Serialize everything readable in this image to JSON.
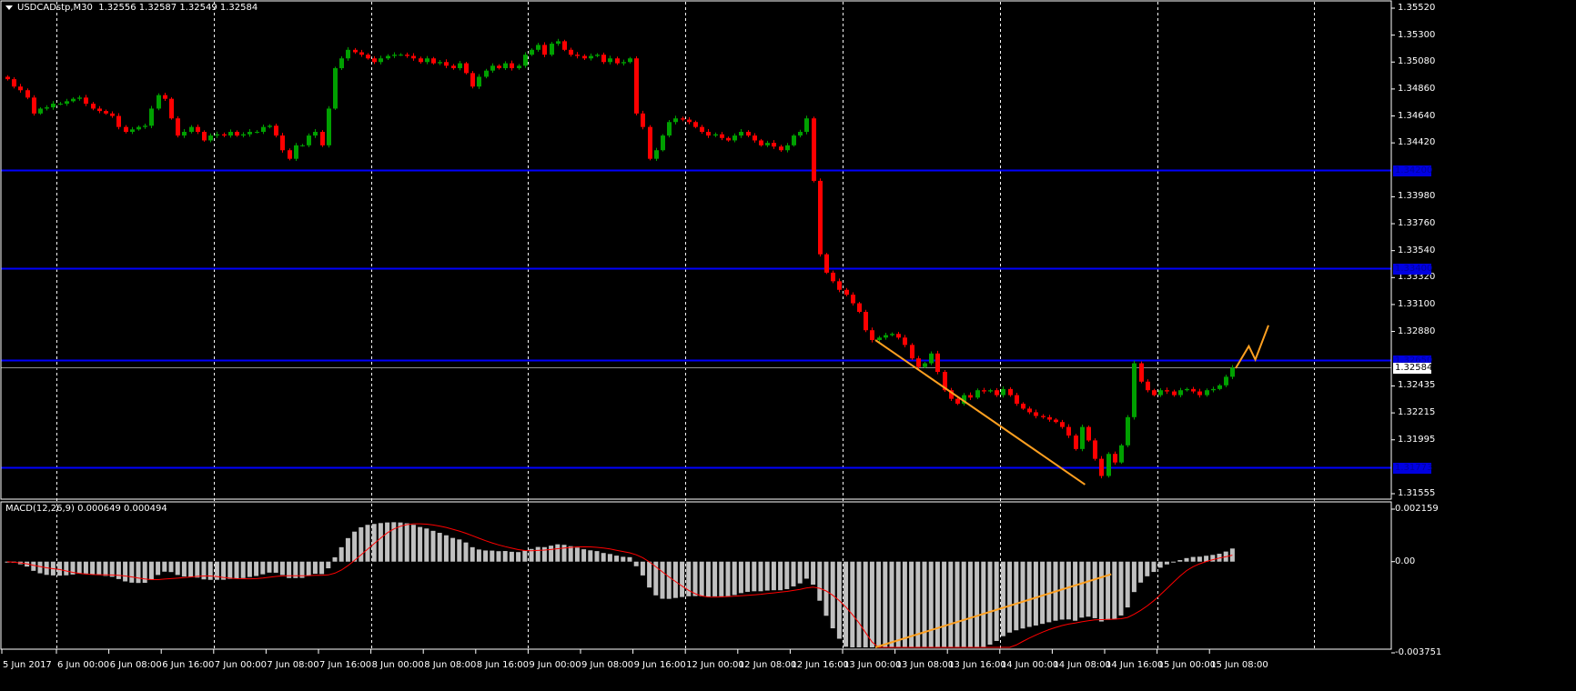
{
  "header": {
    "symbol": "USDCADstp,M30",
    "ohlc": "1.32556 1.32587 1.32549 1.32584"
  },
  "macd_header": {
    "label": "MACD(12,26,9) 0.000649 0.000494"
  },
  "colors": {
    "background": "#000000",
    "bull": "#00a000",
    "bear": "#ff0000",
    "grid": "#ffffff",
    "hline": "#0000ff",
    "trendline": "#ffa020",
    "macd_hist": "#c0c0c0",
    "macd_signal": "#ff0000"
  },
  "chart_data": [
    {
      "type": "candlestick",
      "timeframe": "M30",
      "symbol": "USDCADstp",
      "ylim": [
        1.31555,
        1.3552
      ],
      "grid": true,
      "price_ticks": [
        "1.35520",
        "1.35300",
        "1.35080",
        "1.34860",
        "1.34640",
        "1.34420",
        "1.33980",
        "1.33760",
        "1.33540",
        "1.33320",
        "1.33100",
        "1.32880",
        "1.32435",
        "1.32215",
        "1.31995",
        "1.31555"
      ],
      "time_ticks": [
        {
          "label": "5 Jun 2017",
          "t": "5 Jun 16:00"
        },
        {
          "label": "6 Jun 00:00",
          "t": "6 Jun 00:00"
        },
        {
          "label": "6 Jun 08:00",
          "t": "6 Jun 08:00"
        },
        {
          "label": "6 Jun 16:00",
          "t": "6 Jun 16:00"
        },
        {
          "label": "7 Jun 00:00",
          "t": "7 Jun 00:00"
        },
        {
          "label": "7 Jun 08:00",
          "t": "7 Jun 08:00"
        },
        {
          "label": "7 Jun 16:00",
          "t": "7 Jun 16:00"
        },
        {
          "label": "8 Jun 00:00",
          "t": "8 Jun 00:00"
        },
        {
          "label": "8 Jun 08:00",
          "t": "8 Jun 08:00"
        },
        {
          "label": "8 Jun 16:00",
          "t": "8 Jun 16:00"
        },
        {
          "label": "9 Jun 00:00",
          "t": "9 Jun 00:00"
        },
        {
          "label": "9 Jun 08:00",
          "t": "9 Jun 08:00"
        },
        {
          "label": "9 Jun 16:00",
          "t": "9 Jun 16:00"
        },
        {
          "label": "12 Jun 00:00",
          "t": "12 Jun 00:00"
        },
        {
          "label": "12 Jun 08:00",
          "t": "12 Jun 08:00"
        },
        {
          "label": "12 Jun 16:00",
          "t": "12 Jun 16:00"
        },
        {
          "label": "13 Jun 00:00",
          "t": "13 Jun 00:00"
        },
        {
          "label": "13 Jun 08:00",
          "t": "13 Jun 08:00"
        },
        {
          "label": "13 Jun 16:00",
          "t": "13 Jun 16:00"
        },
        {
          "label": "14 Jun 00:00",
          "t": "14 Jun 00:00"
        },
        {
          "label": "14 Jun 08:00",
          "t": "14 Jun 08:00"
        },
        {
          "label": "14 Jun 16:00",
          "t": "14 Jun 16:00"
        },
        {
          "label": "15 Jun 00:00",
          "t": "15 Jun 00:00"
        },
        {
          "label": "15 Jun 08:00",
          "t": "15 Jun 08:00"
        }
      ],
      "day_separators": [
        "6 Jun 00:00",
        "7 Jun 00:00",
        "8 Jun 00:00",
        "9 Jun 00:00",
        "12 Jun 00:00",
        "13 Jun 00:00",
        "14 Jun 00:00",
        "15 Jun 00:00",
        "16 Jun 00:00"
      ],
      "start": "5 Jun 16:00",
      "sample_step": "1 hour",
      "closes": [
        1.3494,
        1.3488,
        1.3485,
        1.3479,
        1.3466,
        1.347,
        1.3471,
        1.3474,
        1.3474,
        1.3476,
        1.3478,
        1.3479,
        1.3474,
        1.347,
        1.3468,
        1.3466,
        1.3464,
        1.3455,
        1.3451,
        1.3453,
        1.3455,
        1.3456,
        1.347,
        1.3481,
        1.3478,
        1.3462,
        1.3448,
        1.3451,
        1.3455,
        1.3451,
        1.3444,
        1.3448,
        1.3449,
        1.3448,
        1.3451,
        1.3448,
        1.3449,
        1.3451,
        1.3451,
        1.3455,
        1.3456,
        1.3448,
        1.3436,
        1.3429,
        1.344,
        1.344,
        1.3448,
        1.3451,
        1.344,
        1.347,
        1.3503,
        1.3511,
        1.3518,
        1.3516,
        1.3514,
        1.3511,
        1.3508,
        1.3511,
        1.3513,
        1.3514,
        1.3514,
        1.3513,
        1.3511,
        1.3508,
        1.3511,
        1.3507,
        1.3508,
        1.3505,
        1.3503,
        1.3507,
        1.3499,
        1.3488,
        1.3496,
        1.3501,
        1.3505,
        1.3503,
        1.3507,
        1.3503,
        1.3505,
        1.3514,
        1.3518,
        1.3522,
        1.3514,
        1.3523,
        1.3525,
        1.3518,
        1.3514,
        1.3513,
        1.3511,
        1.3513,
        1.3514,
        1.3508,
        1.3511,
        1.3507,
        1.3508,
        1.3511,
        1.3466,
        1.3455,
        1.3429,
        1.3436,
        1.3448,
        1.3459,
        1.3462,
        1.3461,
        1.3459,
        1.3455,
        1.3451,
        1.3448,
        1.3449,
        1.3446,
        1.3444,
        1.3448,
        1.3451,
        1.3448,
        1.3444,
        1.344,
        1.3442,
        1.3439,
        1.3436,
        1.344,
        1.3448,
        1.3451,
        1.3462,
        1.3411,
        1.3351,
        1.3336,
        1.3329,
        1.3322,
        1.3318,
        1.3311,
        1.3304,
        1.3289,
        1.3281,
        1.3283,
        1.3285,
        1.3286,
        1.3283,
        1.3277,
        1.3266,
        1.3259,
        1.3262,
        1.327,
        1.3255,
        1.324,
        1.3233,
        1.3229,
        1.3236,
        1.3234,
        1.324,
        1.3239,
        1.324,
        1.3236,
        1.3241,
        1.3236,
        1.3229,
        1.3225,
        1.3222,
        1.3219,
        1.3218,
        1.3216,
        1.3214,
        1.321,
        1.3203,
        1.3192,
        1.321,
        1.3199,
        1.3184,
        1.317,
        1.3188,
        1.3181,
        1.3195,
        1.3218,
        1.3262,
        1.3247,
        1.324,
        1.3236,
        1.324,
        1.3239,
        1.3236,
        1.324,
        1.3241,
        1.3239,
        1.3236,
        1.324,
        1.3241,
        1.3244,
        1.3251,
        1.32584
      ],
      "horizontal_lines": [
        {
          "price": 1.342,
          "label": "1.34200"
        },
        {
          "price": 1.334,
          "label": "1.33400"
        },
        {
          "price": 1.3265,
          "label": "1.32650"
        },
        {
          "price": 1.31773,
          "label": "1.31773"
        }
      ],
      "current_price": {
        "price": 1.32584,
        "label": "1.32584"
      },
      "trendlines": [
        {
          "points": [
            {
              "t": "13 Jun 05:00",
              "price": 1.3281
            },
            {
              "t": "14 Jun 13:00",
              "price": 1.3163
            }
          ]
        },
        {
          "points": [
            {
              "t": "15 Jun 12:00",
              "price": 1.3258
            },
            {
              "t": "15 Jun 14:00",
              "price": 1.3276
            },
            {
              "t": "15 Jun 15:00",
              "price": 1.3265
            },
            {
              "t": "15 Jun 17:00",
              "price": 1.3293
            }
          ]
        }
      ]
    },
    {
      "type": "histogram+line",
      "indicator": "MACD(12,26,9)",
      "ylim": [
        -0.003751,
        0.002159
      ],
      "ticks": [
        "0.002159",
        "0.00",
        "-0.003751"
      ],
      "current": {
        "macd": 0.000649,
        "signal": 0.000494
      },
      "trendlines": [
        {
          "points": [
            {
              "t": "13 Jun 05:00",
              "value": -0.0037
            },
            {
              "t": "14 Jun 17:00",
              "value": -0.00052
            }
          ]
        }
      ]
    }
  ]
}
